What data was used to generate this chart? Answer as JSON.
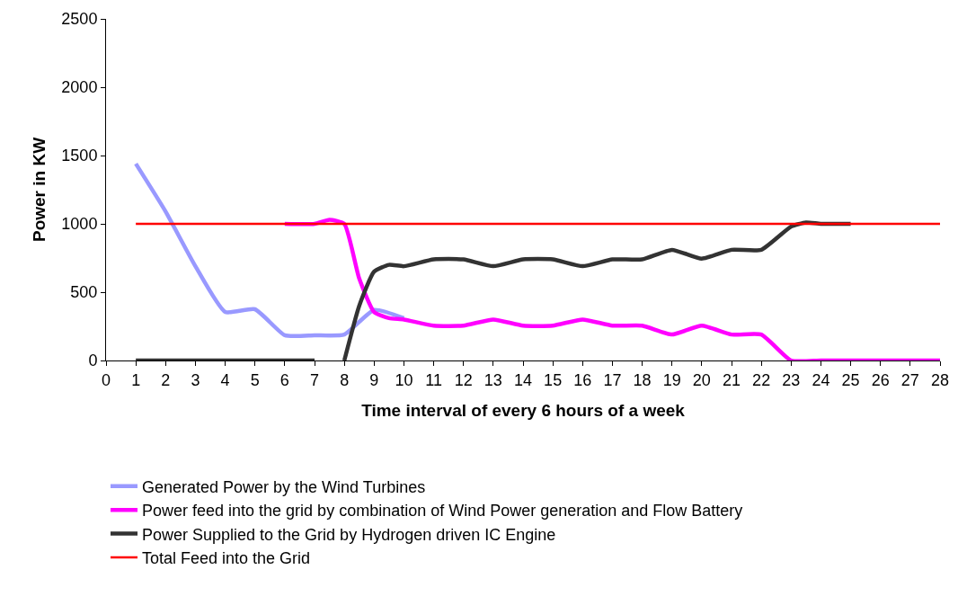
{
  "chart_data": {
    "type": "line",
    "xlabel": "Time interval of every 6 hours of a week",
    "ylabel": "Power in KW",
    "xlim": [
      0,
      28
    ],
    "xticks": [
      0,
      1,
      2,
      3,
      4,
      5,
      6,
      7,
      8,
      9,
      10,
      11,
      12,
      13,
      14,
      15,
      16,
      17,
      18,
      19,
      20,
      21,
      22,
      23,
      24,
      25,
      26,
      27,
      28
    ],
    "ylim": [
      0,
      2500
    ],
    "yticks": [
      0,
      500,
      1000,
      1500,
      2000,
      2500
    ],
    "grid": false,
    "legend": "bottom",
    "marker": "none",
    "line_style": "solid",
    "series": [
      {
        "name": "Generated Power by the Wind Turbines",
        "color": "#9999ff",
        "x": [
          1,
          2,
          3,
          4,
          5,
          6,
          7,
          8,
          9,
          10
        ],
        "values": [
          1440,
          1090,
          690,
          355,
          375,
          185,
          185,
          190,
          370,
          310
        ]
      },
      {
        "name": "Power feed into the grid by combination of Wind Power generation and Flow Battery",
        "color": "#ff00ff",
        "x": [
          6,
          7,
          7.5,
          8,
          8.5,
          9,
          9.5,
          10,
          11,
          12,
          13,
          14,
          15,
          16,
          17,
          18,
          19,
          20,
          21,
          22,
          23,
          24,
          25,
          26,
          27,
          28
        ],
        "values": [
          1000,
          1000,
          1030,
          1000,
          600,
          355,
          310,
          300,
          255,
          255,
          300,
          255,
          255,
          300,
          255,
          255,
          190,
          255,
          190,
          190,
          0,
          0,
          0,
          0,
          0,
          0
        ]
      },
      {
        "name": "Power Supplied to the Grid by Hydrogen driven IC Engine",
        "color": "#333333",
        "x": [
          1,
          2,
          3,
          4,
          5,
          6,
          7,
          7.5,
          8,
          8.5,
          9,
          9.5,
          10,
          11,
          12,
          13,
          14,
          15,
          16,
          17,
          18,
          19,
          20,
          21,
          22,
          23,
          23.5,
          24,
          25
        ],
        "values": [
          0,
          0,
          0,
          0,
          0,
          0,
          0,
          null,
          0,
          400,
          650,
          700,
          690,
          740,
          740,
          690,
          740,
          740,
          690,
          740,
          740,
          810,
          745,
          810,
          810,
          980,
          1010,
          1000,
          1000
        ]
      },
      {
        "name": "Total Feed into the Grid",
        "color": "#ff0000",
        "x": [
          1,
          2,
          3,
          4,
          5,
          6,
          7,
          8,
          9,
          10,
          11,
          12,
          13,
          14,
          15,
          16,
          17,
          18,
          19,
          20,
          21,
          22,
          23,
          24,
          25,
          26,
          27,
          28
        ],
        "values": [
          1000,
          1000,
          1000,
          1000,
          1000,
          1000,
          1000,
          1000,
          1000,
          1000,
          1000,
          1000,
          1000,
          1000,
          1000,
          1000,
          1000,
          1000,
          1000,
          1000,
          1000,
          1000,
          1000,
          1000,
          1000,
          1000,
          1000,
          1000
        ]
      }
    ]
  }
}
